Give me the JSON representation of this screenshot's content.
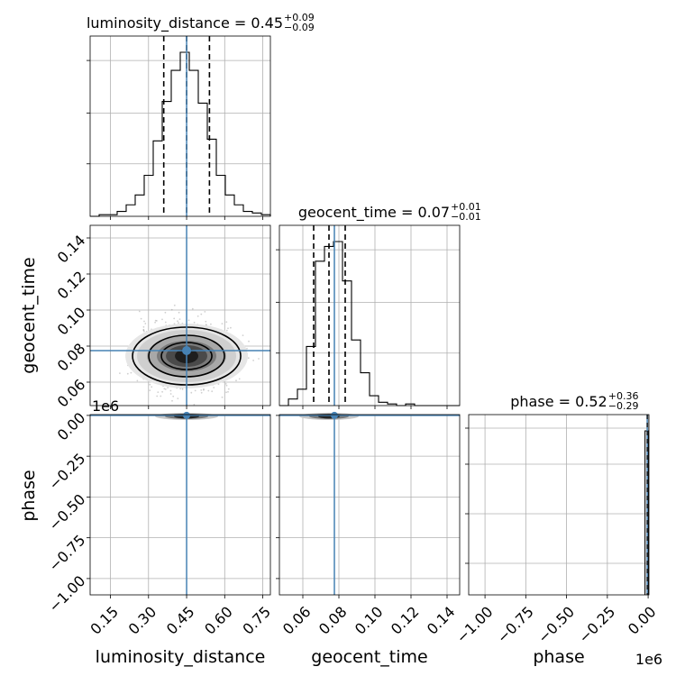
{
  "chart_data": {
    "type": "corner",
    "truth_color": "#4682b4",
    "parameters": [
      {
        "name": "luminosity_distance",
        "title_label": "luminosity_distance = 0.45",
        "title_sup": "+0.09",
        "title_sub": "−0.09",
        "median": 0.45,
        "q_low": 0.36,
        "q_high": 0.54,
        "truth": 0.45,
        "range": [
          0.07,
          0.78
        ],
        "ticks": [
          0.15,
          0.3,
          0.45,
          0.6,
          0.75
        ],
        "tick_labels": [
          "0.15",
          "0.30",
          "0.45",
          "0.60",
          "0.75"
        ],
        "hist": [
          0.0,
          0.01,
          0.01,
          0.03,
          0.07,
          0.13,
          0.25,
          0.46,
          0.7,
          0.89,
          1.0,
          0.89,
          0.69,
          0.47,
          0.25,
          0.13,
          0.07,
          0.03,
          0.02,
          0.01
        ]
      },
      {
        "name": "geocent_time",
        "title_label": "geocent_time = 0.07",
        "title_sup": "+0.01",
        "title_sub": "−0.01",
        "median": 0.0745,
        "q_low": 0.066,
        "q_high": 0.0835,
        "truth": 0.0775,
        "range": [
          0.047,
          0.147
        ],
        "ticks": [
          0.06,
          0.08,
          0.1,
          0.12,
          0.14
        ],
        "tick_labels": [
          "0.06",
          "0.08",
          "0.10",
          "0.12",
          "0.14"
        ],
        "hist": [
          0.0,
          0.04,
          0.1,
          0.36,
          0.88,
          0.97,
          1.0,
          0.76,
          0.4,
          0.2,
          0.06,
          0.02,
          0.01,
          0.0,
          0.01,
          0.0,
          0.0,
          0.0,
          0.0,
          0.0
        ]
      },
      {
        "name": "phase",
        "title_label": "phase = 0.52",
        "title_sup": "+0.36",
        "title_sub": "−0.29",
        "truth": 0.52,
        "range": [
          -1100000,
          5000
        ],
        "ticks": [
          -1000000,
          -750000,
          -500000,
          -250000,
          0
        ],
        "tick_labels": [
          "−1.00",
          "−0.75",
          "−0.50",
          "−0.25",
          "0.00"
        ],
        "offset_label": "1e6",
        "hist_note": "all samples in single bin at 0"
      }
    ],
    "row_tick_labels": {
      "geocent_time": [
        "0.06",
        "0.08",
        "0.10",
        "0.12",
        "0.14"
      ],
      "phase": [
        "0.00",
        "−0.25",
        "−0.50",
        "−0.75",
        "−1.00"
      ]
    },
    "phase_row_offset": "1e6",
    "grid": true
  }
}
